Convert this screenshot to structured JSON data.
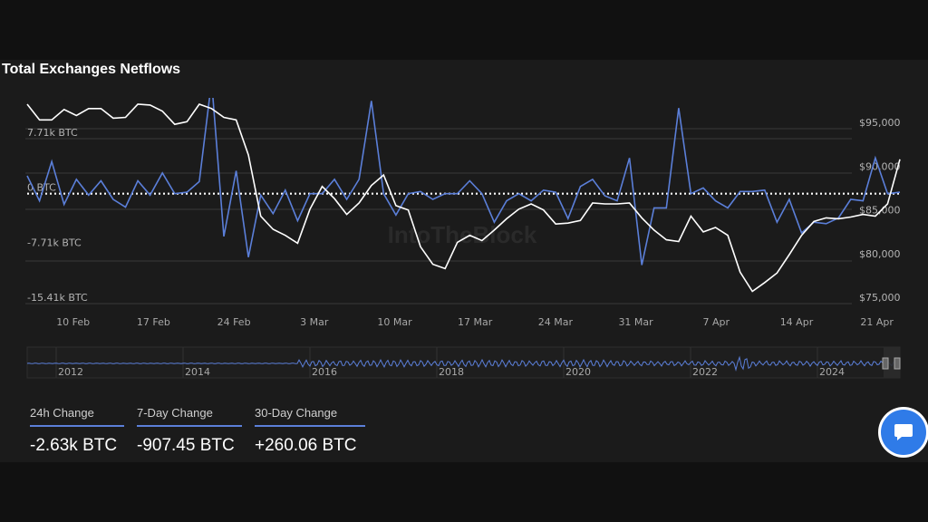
{
  "title": "Total Exchanges Netflows",
  "watermark": "IntoTheBlock",
  "colors": {
    "netflow": "#5b7fd9",
    "price": "#ffffff",
    "accent": "#2f7be8",
    "background": "#1b1b1b"
  },
  "chart_data": {
    "type": "line",
    "title": "Total Exchanges Netflows",
    "x_ticks": [
      "10 Feb",
      "17 Feb",
      "24 Feb",
      "3 Mar",
      "10 Mar",
      "17 Mar",
      "24 Mar",
      "31 Mar",
      "7 Apr",
      "14 Apr",
      "21 Apr"
    ],
    "x_range": [
      "2025-02-06",
      "2025-04-23"
    ],
    "y_left": {
      "ticks": [
        "7.71k BTC",
        "0 BTC",
        "-7.71k BTC",
        "-15.41k BTC"
      ],
      "values": [
        7710,
        0,
        -7710,
        -15410
      ]
    },
    "y_right": {
      "ticks": [
        "$95,000",
        "$90,000",
        "$85,000",
        "$80,000",
        "$75,000"
      ],
      "values": [
        95000,
        90000,
        85000,
        80000,
        75000
      ]
    },
    "zero_line": "dotted",
    "series": [
      {
        "axis": "left",
        "values": [
          2500,
          -1000,
          4500,
          -1500,
          2000,
          -200,
          1800,
          -800,
          -1900,
          1800,
          -200,
          2900,
          0,
          200,
          1700,
          15800,
          -6000,
          3200,
          -8900,
          -200,
          -2800,
          500,
          -3800,
          0,
          0,
          2000,
          -800,
          2000,
          13000,
          0,
          -3000,
          0,
          300,
          -800,
          0,
          0,
          1800,
          0,
          -4000,
          -1000,
          0,
          -1000,
          500,
          200,
          -3500,
          1000,
          2000,
          -300,
          -1000,
          5000,
          -10000,
          -2000,
          -2000,
          12000,
          0,
          800,
          -1000,
          -2000,
          300,
          300,
          500,
          -4000,
          -800,
          -5500,
          -4000,
          -4200,
          -3400,
          -800,
          -1000,
          5000,
          0,
          200
        ],
        "unit": "BTC"
      },
      {
        "axis": "right",
        "values": [
          97800,
          96000,
          96000,
          97200,
          96500,
          97300,
          97300,
          96200,
          96300,
          97800,
          97700,
          97000,
          95500,
          95800,
          97800,
          97300,
          96300,
          96000,
          92000,
          85000,
          83500,
          82800,
          81900,
          85800,
          88400,
          87000,
          85200,
          86500,
          88500,
          89700,
          86200,
          85700,
          81500,
          79500,
          79000,
          82000,
          82800,
          82200,
          83400,
          84700,
          85800,
          86400,
          85700,
          84100,
          84200,
          84500,
          86500,
          86400,
          86400,
          86500,
          84800,
          83400,
          82300,
          82100,
          85000,
          83200,
          83700,
          82800,
          78600,
          76400,
          77400,
          78500,
          80600,
          82800,
          84400,
          84800,
          84700,
          84900,
          85200,
          85000,
          86400,
          91500
        ],
        "unit": "USD"
      }
    ],
    "navigator": {
      "years": [
        "2012",
        "2014",
        "2016",
        "2018",
        "2020",
        "2022",
        "2024"
      ]
    }
  },
  "stats": [
    {
      "label": "24h Change",
      "value": "-2.63k BTC"
    },
    {
      "label": "7-Day Change",
      "value": "-907.45 BTC"
    },
    {
      "label": "30-Day Change",
      "value": "+260.06 BTC"
    }
  ],
  "chat_button": "chat-icon"
}
